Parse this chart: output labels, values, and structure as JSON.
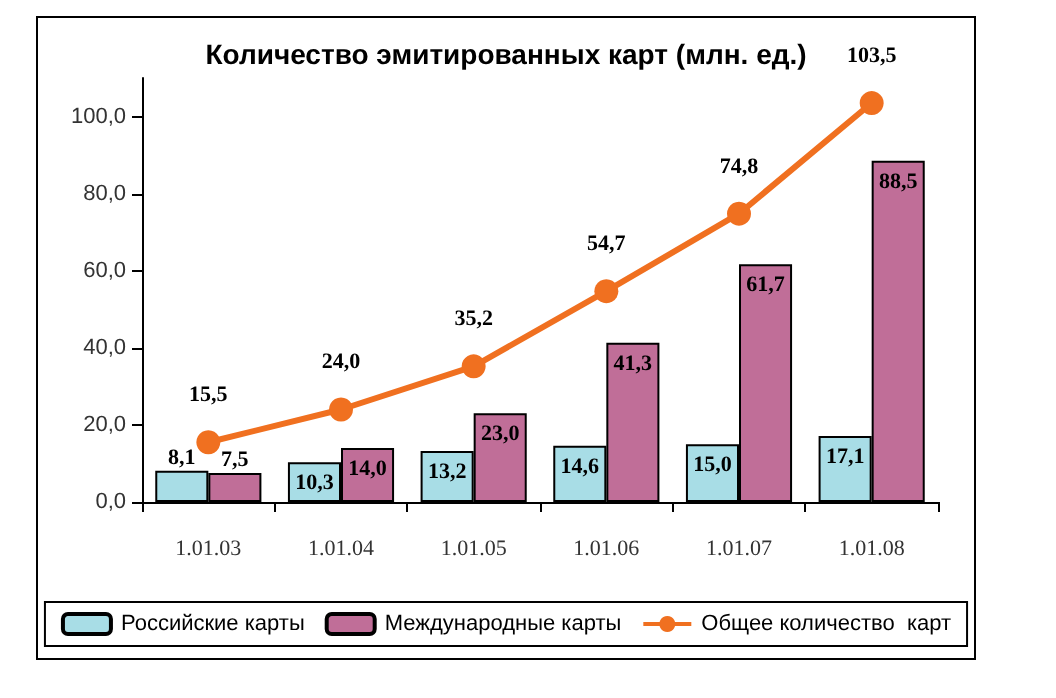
{
  "chart_data": {
    "type": "bar",
    "title": "Количество эмитированных карт (млн. ед.)",
    "categories": [
      "1.01.03",
      "1.01.04",
      "1.01.05",
      "1.01.06",
      "1.01.07",
      "1.01.08"
    ],
    "series": [
      {
        "name": "Российские карты",
        "color": "#a8dde6",
        "values": [
          8.1,
          10.3,
          13.2,
          14.6,
          15.0,
          17.1
        ],
        "value_labels": [
          "8,1",
          "10,3",
          "13,2",
          "14,6",
          "15,0",
          "17,1"
        ]
      },
      {
        "name": "Международные карты",
        "color": "#c06e98",
        "values": [
          7.5,
          14.0,
          23.0,
          41.3,
          61.7,
          88.5
        ],
        "value_labels": [
          "7,5",
          "14,0",
          "23,0",
          "41,3",
          "61,7",
          "88,5"
        ]
      },
      {
        "name": "Общее количество  карт",
        "type": "line",
        "color": "#f07020",
        "values": [
          15.5,
          24.0,
          35.2,
          54.7,
          74.8,
          103.5
        ],
        "value_labels": [
          "15,5",
          "24,0",
          "35,2",
          "54,7",
          "74,8",
          "103,5"
        ]
      }
    ],
    "ylim": [
      0,
      110
    ],
    "yticks": [
      {
        "value": 0,
        "label": "0,0"
      },
      {
        "value": 20,
        "label": "20,0"
      },
      {
        "value": 40,
        "label": "40,0"
      },
      {
        "value": 60,
        "label": "60,0"
      },
      {
        "value": 80,
        "label": "80,0"
      },
      {
        "value": 100,
        "label": "100,0"
      }
    ],
    "grid": false,
    "legend": "bottom",
    "marker": "circle",
    "line_style": "solid"
  }
}
